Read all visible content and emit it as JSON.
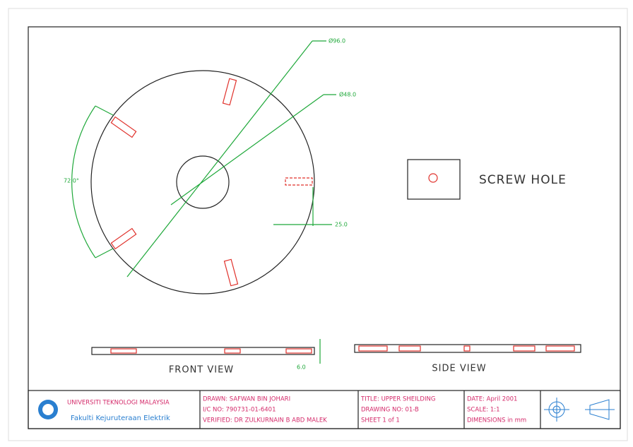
{
  "labels": {
    "outer_diameter": "Ø96.0",
    "inner_diameter": "Ø48.0",
    "angle": "72.0°",
    "offset": "25.0",
    "thickness": "6.0",
    "screw_hole": "SCREW HOLE",
    "front_view": "FRONT VIEW",
    "side_view": "SIDE VIEW"
  },
  "title_block": {
    "university": "UNIVERSITI TEKNOLOGI MALAYSIA",
    "faculty": "Fakulti Kejuruteraan Elektrik",
    "drawn": "DRAWN:  SAFWAN BIN JOHARI",
    "ic_no": "I/C NO:   790731-01-6401",
    "verified": "VERIFIED: DR ZULKURNAIN B ABD MALEK",
    "title": "TITLE:  UPPER SHEILDING",
    "drawing_no": "DRAWING NO:  01-B",
    "sheet": "SHEET 1  of 1",
    "date": "DATE:  April 2001",
    "scale": "SCALE:  1:1",
    "dimensions": "DIMENSIONS in mm"
  }
}
